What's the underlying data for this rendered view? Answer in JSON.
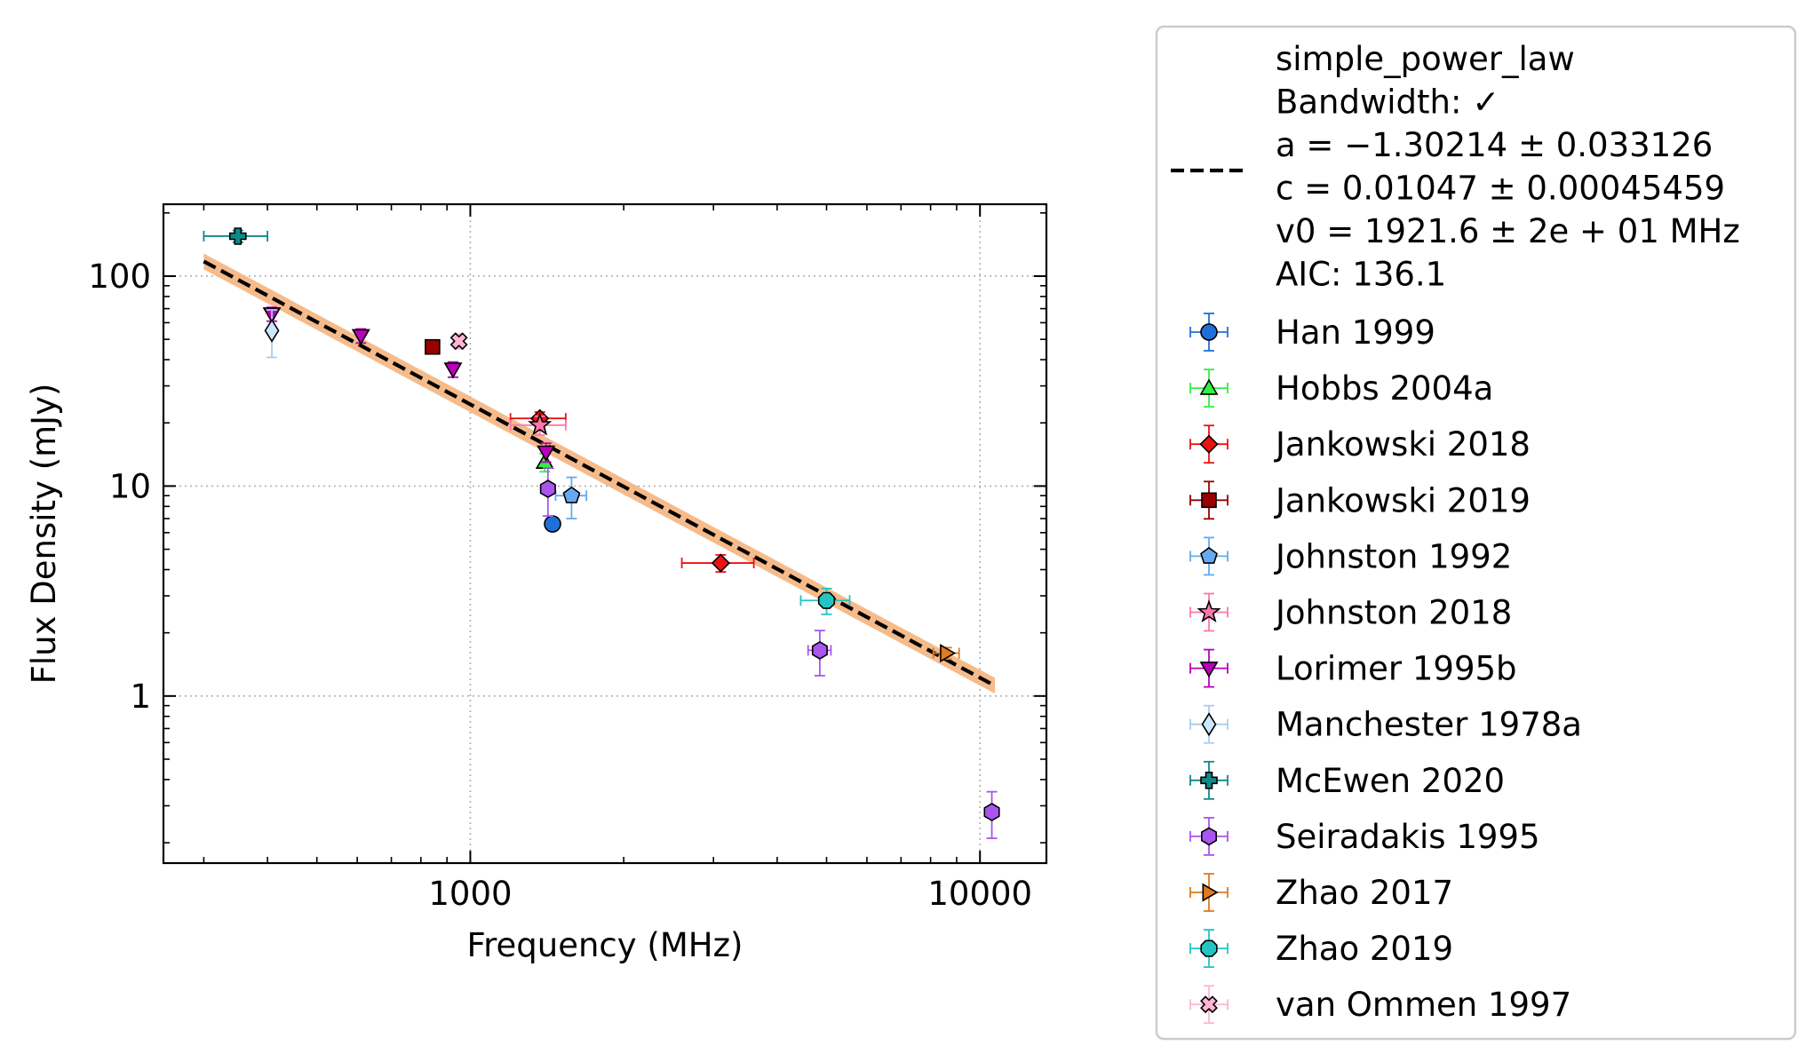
{
  "chart_data": {
    "type": "scatter",
    "title": "",
    "xlabel": "Frequency (MHz)",
    "ylabel": "Flux Density (mJy)",
    "xscale": "log",
    "yscale": "log",
    "xlim": [
      250,
      13500
    ],
    "ylim": [
      0.16,
      220
    ],
    "x_ticks": [
      {
        "value": 1000,
        "label": "1000"
      },
      {
        "value": 10000,
        "label": "10000"
      }
    ],
    "y_ticks": [
      {
        "value": 1,
        "label": "1"
      },
      {
        "value": 10,
        "label": "10"
      },
      {
        "value": 100,
        "label": "100"
      }
    ],
    "grid": true,
    "legend_position": "outside-right",
    "fit": {
      "legend_lines": [
        "simple_power_law",
        "Bandwidth: ✓",
        "a = −1.30214 ± 0.033126",
        "c = 0.01047 ± 0.00045459",
        "v0 = 1921.6 ± 2e + 01 MHz",
        "AIC: 136.1"
      ],
      "a": -1.30214,
      "c": 0.01047,
      "v0": 1921.6,
      "range": [
        300,
        10700
      ],
      "line_color": "#000000",
      "band_color": "#f5b47e"
    },
    "series": [
      {
        "name": "Han 1999",
        "marker": "circle",
        "color": "#1f6fd9",
        "ecolor": "#1f6fd9",
        "points": [
          {
            "x": 1450,
            "y": 6.6,
            "xerr": 0,
            "yerr": 0
          }
        ]
      },
      {
        "name": "Hobbs 2004a",
        "marker": "triangle-up",
        "color": "#33ee44",
        "ecolor": "#33ee44",
        "points": [
          {
            "x": 1400,
            "y": 13,
            "xerr": 0,
            "yerr": 1.3
          }
        ]
      },
      {
        "name": "Jankowski 2018",
        "marker": "diamond",
        "color": "#ee1111",
        "ecolor": "#ee1111",
        "points": [
          {
            "x": 1369,
            "y": 21,
            "xerr": 170,
            "yerr": 1.5
          },
          {
            "x": 3100,
            "y": 4.3,
            "xerr": 500,
            "yerr": 0.4
          }
        ]
      },
      {
        "name": "Jankowski 2019",
        "marker": "square",
        "color": "#990000",
        "ecolor": "#990000",
        "points": [
          {
            "x": 843,
            "y": 46,
            "xerr": 0,
            "yerr": 3
          }
        ]
      },
      {
        "name": "Johnston 1992",
        "marker": "pentagon",
        "color": "#66aaee",
        "ecolor": "#66aaee",
        "points": [
          {
            "x": 1580,
            "y": 9,
            "xerr": 110,
            "yerr": 2
          }
        ]
      },
      {
        "name": "Johnston 2018",
        "marker": "star",
        "color": "#ff77aa",
        "ecolor": "#ff77aa",
        "points": [
          {
            "x": 1369,
            "y": 19.5,
            "xerr": 170,
            "yerr": 2
          }
        ]
      },
      {
        "name": "Lorimer 1995b",
        "marker": "triangle-down",
        "color": "#bb00bb",
        "ecolor": "#bb00bb",
        "points": [
          {
            "x": 408,
            "y": 66,
            "xerr": 0,
            "yerr": 5
          },
          {
            "x": 610,
            "y": 52,
            "xerr": 0,
            "yerr": 4
          },
          {
            "x": 925,
            "y": 36,
            "xerr": 0,
            "yerr": 3
          },
          {
            "x": 1408,
            "y": 14.5,
            "xerr": 0,
            "yerr": 1.5
          }
        ]
      },
      {
        "name": "Manchester 1978a",
        "marker": "thin-diamond",
        "color": "#cce6ff",
        "ecolor": "#aaccee",
        "points": [
          {
            "x": 408,
            "y": 55,
            "xerr": 0,
            "yerr": 14
          }
        ]
      },
      {
        "name": "McEwen 2020",
        "marker": "plus",
        "color": "#108888",
        "ecolor": "#108888",
        "points": [
          {
            "x": 350,
            "y": 155,
            "xerr": 50,
            "yerr": 10
          }
        ]
      },
      {
        "name": "Seiradakis 1995",
        "marker": "hexagon",
        "color": "#aa55ee",
        "ecolor": "#aa55ee",
        "points": [
          {
            "x": 1420,
            "y": 9.7,
            "xerr": 0,
            "yerr": 2.5
          },
          {
            "x": 4850,
            "y": 1.65,
            "xerr": 250,
            "yerr": 0.4
          },
          {
            "x": 10550,
            "y": 0.28,
            "xerr": 0,
            "yerr": 0.07
          }
        ]
      },
      {
        "name": "Zhao 2017",
        "marker": "triangle-right",
        "color": "#e07a1f",
        "ecolor": "#e07a1f",
        "points": [
          {
            "x": 8600,
            "y": 1.6,
            "xerr": 500,
            "yerr": 0.1
          }
        ]
      },
      {
        "name": "Zhao 2019",
        "marker": "octagon",
        "color": "#22c4c4",
        "ecolor": "#22c4c4",
        "points": [
          {
            "x": 5000,
            "y": 2.85,
            "xerr": 550,
            "yerr": 0.4
          }
        ]
      },
      {
        "name": "van Ommen 1997",
        "marker": "x-filled",
        "color": "#ffb6d2",
        "ecolor": "#ffb6d2",
        "points": [
          {
            "x": 950,
            "y": 49,
            "xerr": 0,
            "yerr": 4
          }
        ]
      }
    ]
  }
}
